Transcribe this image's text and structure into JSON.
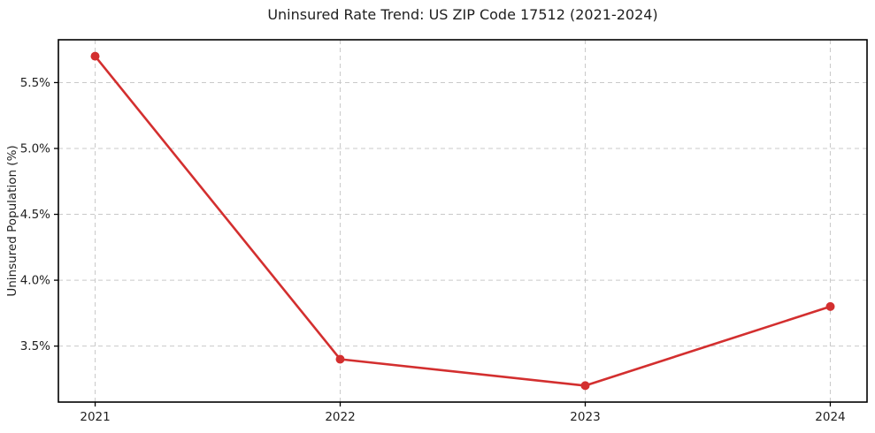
{
  "title": "Uninsured Rate Trend: US ZIP Code 17512 (2021-2024)",
  "chart_data": {
    "type": "line",
    "title": "Uninsured Rate Trend: US ZIP Code 17512 (2021-2024)",
    "xlabel": "",
    "ylabel": "Uninsured Population (%)",
    "x": [
      2021,
      2022,
      2023,
      2024
    ],
    "series": [
      {
        "name": "Uninsured rate",
        "values": [
          5.7,
          3.4,
          3.2,
          3.8
        ]
      }
    ],
    "x_ticks": [
      2021,
      2022,
      2023,
      2024
    ],
    "x_tick_labels": [
      "2021",
      "2022",
      "2023",
      "2024"
    ],
    "y_ticks": [
      3.5,
      4.0,
      4.5,
      5.0,
      5.5
    ],
    "y_tick_labels": [
      "3.5%",
      "4.0%",
      "4.5%",
      "5.0%",
      "5.5%"
    ],
    "xlim": [
      2020.85,
      2024.15
    ],
    "ylim": [
      3.075,
      5.825
    ],
    "grid": true,
    "legend": "none",
    "colors": {
      "line": "#d32f2f",
      "marker": "#d32f2f",
      "grid": "#c9c9c9",
      "spine": "#000000",
      "text": "#1f1f1f",
      "background": "#ffffff"
    }
  }
}
